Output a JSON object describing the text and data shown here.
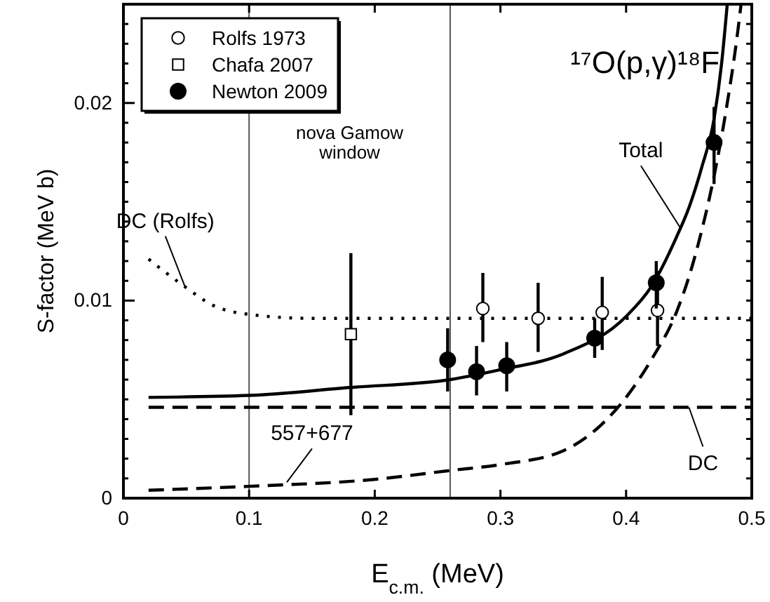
{
  "chart_data": {
    "type": "scatter",
    "title": "¹⁷O(p,γ)¹⁸F",
    "xlabel": "E$_{c.m.}$ (MeV)",
    "ylabel": "S-factor (MeV b)",
    "xlim": [
      0,
      0.5
    ],
    "ylim": [
      0,
      0.025
    ],
    "xticks": [
      0,
      0.1,
      0.2,
      0.3,
      0.4,
      0.5
    ],
    "yticks": [
      0,
      {
        "value": 0.001,
        "label": null
      },
      {
        "value": 0.002,
        "label": null
      },
      {
        "value": 0.003,
        "label": null
      },
      {
        "value": 0.004,
        "label": null
      },
      {
        "value": 0.005,
        "label": null
      },
      {
        "value": 0.006,
        "label": null
      },
      {
        "value": 0.007,
        "label": null
      },
      {
        "value": 0.008,
        "label": null
      },
      {
        "value": 0.009,
        "label": null
      },
      0.01,
      {
        "value": 0.011,
        "label": null
      },
      {
        "value": 0.012,
        "label": null
      },
      {
        "value": 0.013,
        "label": null
      },
      {
        "value": 0.014,
        "label": null
      },
      {
        "value": 0.015,
        "label": null
      },
      {
        "value": 0.016,
        "label": null
      },
      {
        "value": 0.017,
        "label": null
      },
      {
        "value": 0.018,
        "label": null
      },
      {
        "value": 0.019,
        "label": null
      },
      0.02,
      {
        "value": 0.021,
        "label": null
      },
      {
        "value": 0.022,
        "label": null
      },
      {
        "value": 0.023,
        "label": null
      },
      {
        "value": 0.024,
        "label": null
      },
      {
        "value": 0.025,
        "label": null
      }
    ],
    "legend": "top left",
    "ref_lines": [
      {
        "axis": "x",
        "value": 0.1,
        "color": "#555555"
      },
      {
        "axis": "x",
        "value": 0.26,
        "color": "#555555"
      }
    ],
    "series": [
      {
        "name": "Rolfs 1973",
        "marker": "circle",
        "color": "#ffffff",
        "x": [
          0.286,
          0.33,
          0.381,
          0.425
        ],
        "values": [
          0.0096,
          0.0091,
          0.0094,
          0.0095
        ],
        "errors": [
          [
            0.0079,
            0.0114
          ],
          [
            0.0074,
            0.0109
          ],
          [
            0.0075,
            0.0112
          ],
          [
            0.0077,
            0.0115
          ]
        ]
      },
      {
        "name": "Chafa 2007",
        "marker": "square",
        "color": "#ffffff",
        "x": [
          0.181
        ],
        "values": [
          0.0083
        ],
        "errors": [
          [
            0.0042,
            0.0124
          ]
        ]
      },
      {
        "name": "Newton 2009",
        "marker": "circle",
        "color": "#000000",
        "x": [
          0.258,
          0.281,
          0.305,
          0.375,
          0.424,
          0.47
        ],
        "values": [
          0.007,
          0.0064,
          0.0067,
          0.0081,
          0.0109,
          0.018
        ],
        "errors": [
          [
            0.0054,
            0.0086
          ],
          [
            0.0052,
            0.0077
          ],
          [
            0.0054,
            0.0079
          ],
          [
            0.0071,
            0.0091
          ],
          [
            0.0096,
            0.012
          ],
          [
            0.0159,
            0.0198
          ]
        ]
      },
      {
        "type": "line",
        "line_style": "solid",
        "color": "#000000",
        "x": [
          0.02,
          0.1,
          0.18,
          0.26,
          0.3,
          0.35,
          0.4,
          0.42,
          0.44,
          0.45,
          0.46,
          0.47,
          0.476,
          0.4805
        ],
        "values": [
          0.0051,
          0.0052,
          0.0056,
          0.006,
          0.0065,
          0.0073,
          0.0092,
          0.0107,
          0.0132,
          0.0147,
          0.0167,
          0.0192,
          0.022,
          0.025
        ]
      },
      {
        "type": "line",
        "line_style": "dashed",
        "color": "#000000",
        "x": [
          0.02,
          0.5
        ],
        "values": [
          0.0046,
          0.0046
        ]
      },
      {
        "type": "line",
        "line_style": "dashed",
        "color": "#000000",
        "x": [
          0.02,
          0.1,
          0.2,
          0.26,
          0.3,
          0.35,
          0.38,
          0.4,
          0.42,
          0.44,
          0.45,
          0.46,
          0.47,
          0.48,
          0.488,
          0.4915
        ],
        "values": [
          0.0004,
          0.0006,
          0.00095,
          0.0014,
          0.0017,
          0.0024,
          0.0037,
          0.0051,
          0.007,
          0.0094,
          0.0112,
          0.0135,
          0.0163,
          0.0198,
          0.0232,
          0.025
        ]
      },
      {
        "type": "line",
        "line_style": "dotted",
        "color": "#000000",
        "x": [
          0.02,
          0.03,
          0.049,
          0.07,
          0.1,
          0.15,
          0.5
        ],
        "values": [
          0.0121,
          0.0116,
          0.0107,
          0.0098,
          0.0093,
          0.0091,
          0.0091
        ]
      }
    ],
    "annotations": [
      "nova Gamow window",
      {
        "text": "DC (Rolfs)",
        "x": 0.049,
        "y": 0.0107
      },
      {
        "text": "Total",
        "x": 0.443,
        "y": 0.0137
      },
      {
        "text": "557+677",
        "x": 0.13,
        "y": 0.0008
      },
      {
        "text": "DC",
        "x": 0.45,
        "y": 0.0046
      }
    ]
  }
}
